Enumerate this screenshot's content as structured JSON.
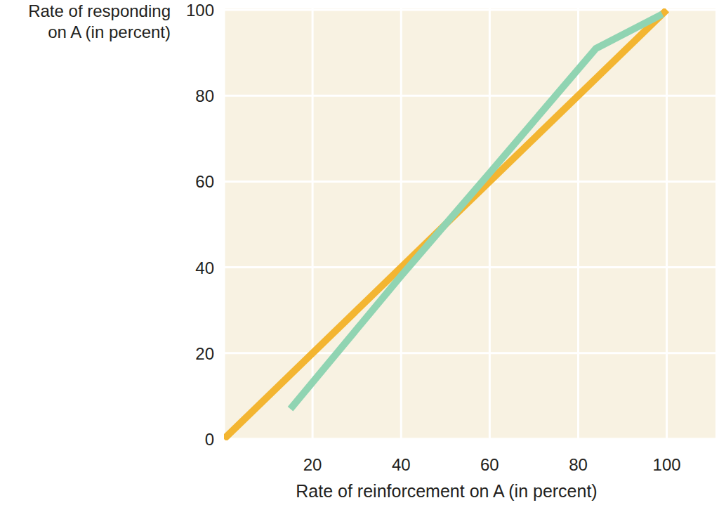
{
  "chart_data": {
    "type": "line",
    "x_label": "Rate of reinforcement on A (in percent)",
    "y_label": [
      "Rate of responding",
      "on A (in percent)"
    ],
    "xlim": [
      0,
      111
    ],
    "ylim": [
      0,
      100
    ],
    "xticks": [
      20,
      40,
      60,
      80,
      100
    ],
    "yticks": [
      0,
      20,
      40,
      60,
      80,
      100
    ],
    "grid": true,
    "series": [
      {
        "color": "#f3b531",
        "x": [
          0,
          100
        ],
        "values": [
          0,
          100
        ]
      },
      {
        "color": "#90d4b2",
        "x": [
          15,
          40,
          60,
          84,
          99
        ],
        "values": [
          7,
          38,
          62,
          91,
          99
        ]
      }
    ]
  }
}
